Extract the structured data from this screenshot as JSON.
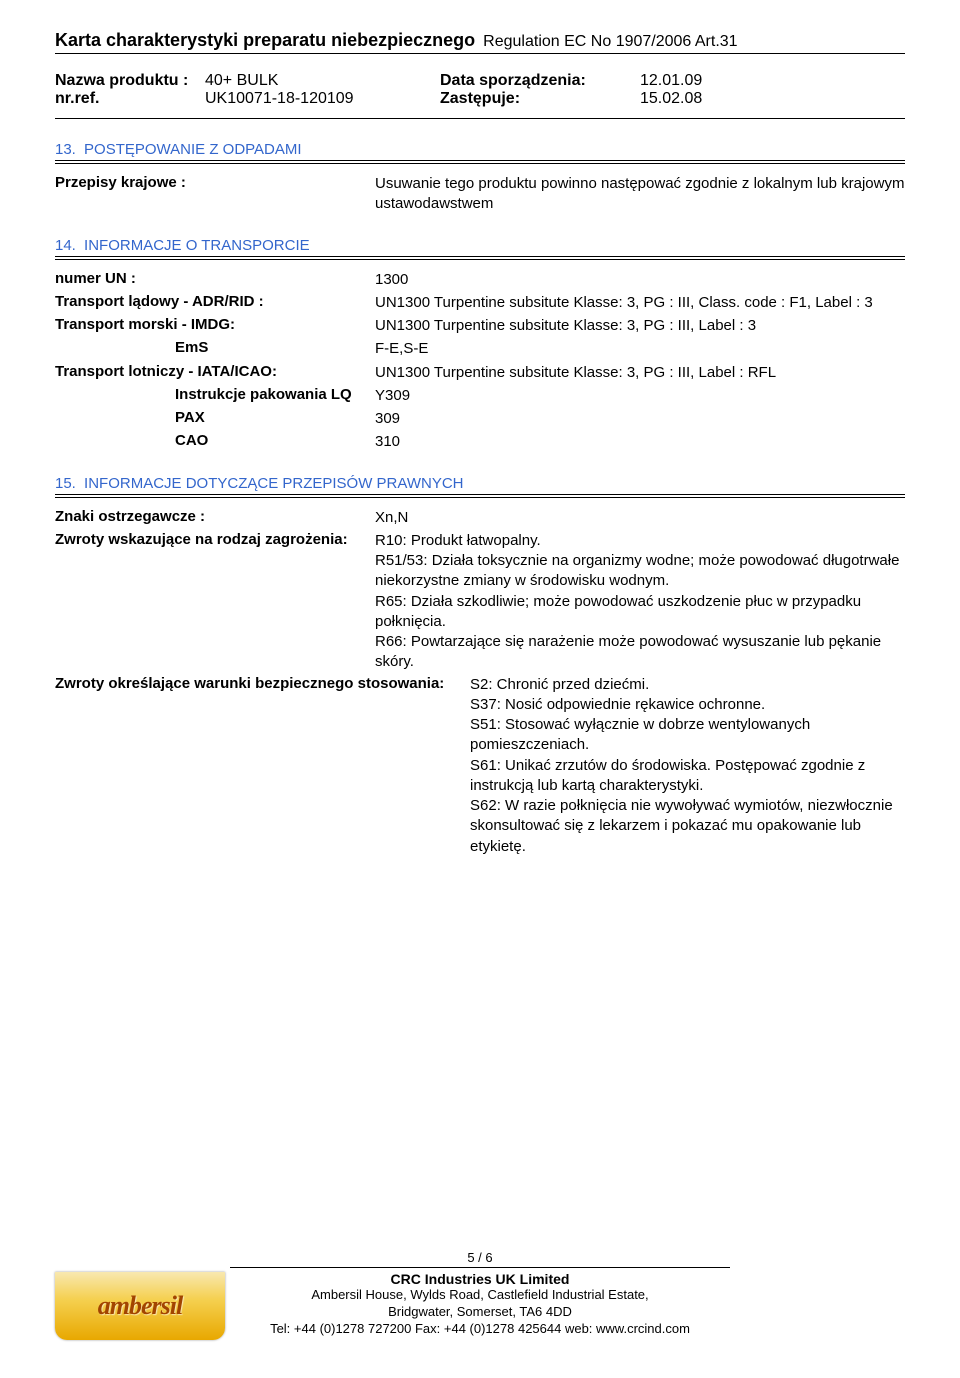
{
  "header": {
    "main_title": "Karta charakterystyki preparatu niebezpiecznego",
    "regulation": "Regulation EC No 1907/2006 Art.31"
  },
  "product": {
    "name_label": "Nazwa produktu :",
    "name_value": "40+ BULK",
    "date_label": "Data sporządzenia:",
    "date_value": "12.01.09",
    "ref_label": "nr.ref.",
    "ref_value": "UK10071-18-120109",
    "replaces_label": "Zastępuje:",
    "replaces_value": "15.02.08"
  },
  "section13": {
    "num": "13.",
    "title": "POSTĘPOWANIE Z ODPADAMI",
    "national_label": "Przepisy krajowe :",
    "national_value": "Usuwanie tego produktu powinno następować zgodnie z lokalnym lub krajowym ustawodawstwem"
  },
  "section14": {
    "num": "14.",
    "title": "INFORMACJE O TRANSPORCIE",
    "un_label": "numer UN :",
    "un_value": "1300",
    "adr_label": "Transport lądowy - ADR/RID :",
    "adr_value": "UN1300 Turpentine subsitute Klasse: 3, PG : III, Class. code : F1, Label : 3",
    "imdg_label": "Transport morski - IMDG:",
    "imdg_value": "UN1300 Turpentine subsitute Klasse: 3, PG : III, Label : 3",
    "ems_label": "EmS",
    "ems_value": "F-E,S-E",
    "iata_label": "Transport lotniczy - IATA/ICAO:",
    "iata_value": "UN1300 Turpentine subsitute Klasse: 3, PG : III, Label : RFL",
    "lq_label": "Instrukcje pakowania LQ",
    "lq_value": "Y309",
    "pax_label": "PAX",
    "pax_value": "309",
    "cao_label": "CAO",
    "cao_value": "310"
  },
  "section15": {
    "num": "15.",
    "title": "INFORMACJE DOTYCZĄCE PRZEPISÓW PRAWNYCH",
    "hazard_label": "Znaki ostrzegawcze :",
    "hazard_value": "Xn,N",
    "risk_label": "Zwroty wskazujące na rodzaj zagrożenia:",
    "risk_r10": "R10: Produkt łatwopalny.",
    "risk_r51": "R51/53: Działa toksycznie na organizmy wodne; może powodować długotrwałe niekorzystne zmiany w środowisku wodnym.",
    "risk_r65": "R65: Działa szkodliwie; może powodować uszkodzenie płuc w przypadku połknięcia.",
    "risk_r66": "R66: Powtarzające się narażenie może powodować wysuszanie lub pękanie skóry.",
    "safety_label": "Zwroty określające warunki bezpiecznego stosowania:",
    "safety_s2": "S2: Chronić przed dziećmi.",
    "safety_s37": "S37: Nosić odpowiednie rękawice ochronne.",
    "safety_s51": "S51: Stosować wyłącznie w dobrze wentylowanych pomieszczeniach.",
    "safety_s61": "S61: Unikać zrzutów do środowiska. Postępować zgodnie z instrukcją lub kartą charakterystyki.",
    "safety_s62": "S62: W razie połknięcia nie wywoływać wymiotów, niezwłocznie skonsultować się z lekarzem i pokazać mu opakowanie lub etykietę."
  },
  "footer": {
    "page": "5 / 6",
    "company": "CRC Industries UK Limited",
    "addr1": "Ambersil House, Wylds Road, Castlefield Industrial Estate,",
    "addr2": "Bridgwater, Somerset, TA6 4DD",
    "tel": "Tel: +44 (0)1278 727200  Fax: +44 (0)1278 425644  web: www.crcind.com",
    "logo_text": "ambersil"
  },
  "colors": {
    "section_header": "#3366cc",
    "text": "#000000",
    "background": "#ffffff"
  }
}
